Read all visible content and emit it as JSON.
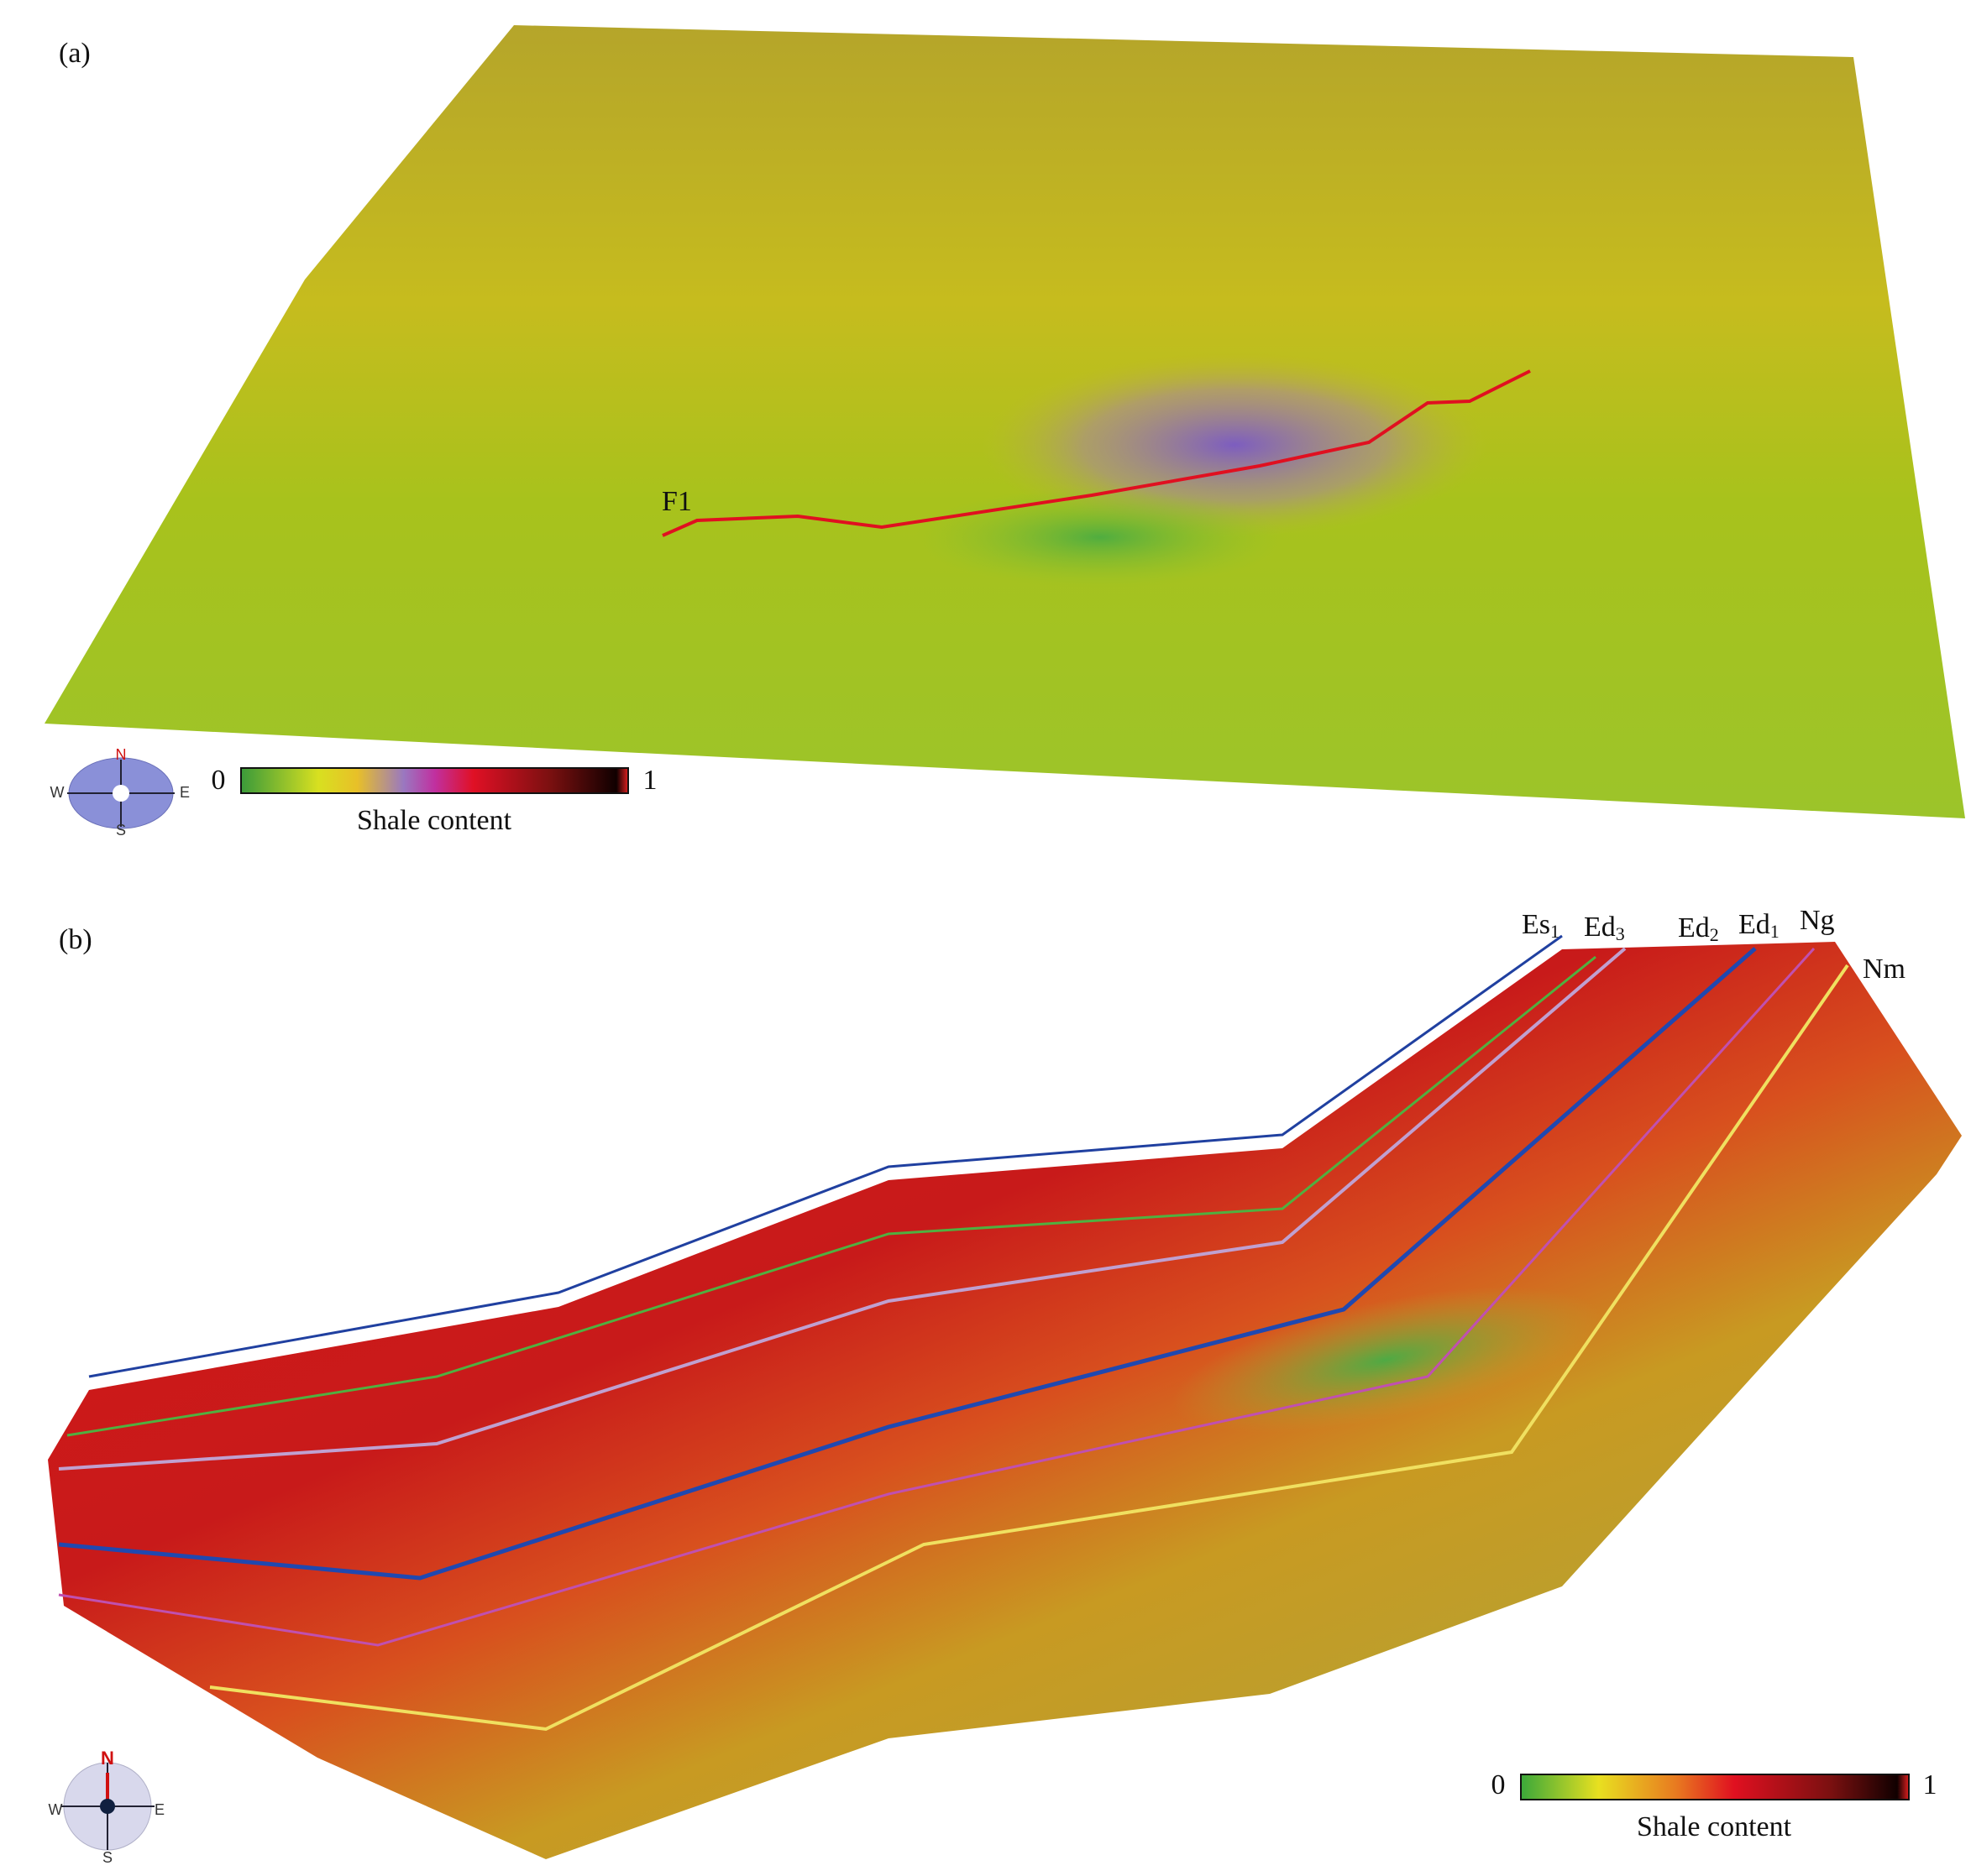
{
  "panel_a": {
    "label": "(a)",
    "fault_label": "F1",
    "colorbar": {
      "min": 0,
      "max": 1,
      "title": "Shale content"
    },
    "compass": {
      "n": "N",
      "e": "E",
      "s": "S",
      "w": "W"
    }
  },
  "panel_b": {
    "label": "(b)",
    "horizons": [
      {
        "base": "Es",
        "sub": "1"
      },
      {
        "base": "Ed",
        "sub": "3"
      },
      {
        "base": "Ed",
        "sub": "2"
      },
      {
        "base": "Ed",
        "sub": "1"
      },
      {
        "base": "Ng"
      },
      {
        "base": "Nm"
      }
    ],
    "colorbar": {
      "min": 0,
      "max": 1,
      "title": "Shale content"
    },
    "compass": {
      "n": "N",
      "e": "E",
      "s": "S",
      "w": "W"
    }
  }
}
